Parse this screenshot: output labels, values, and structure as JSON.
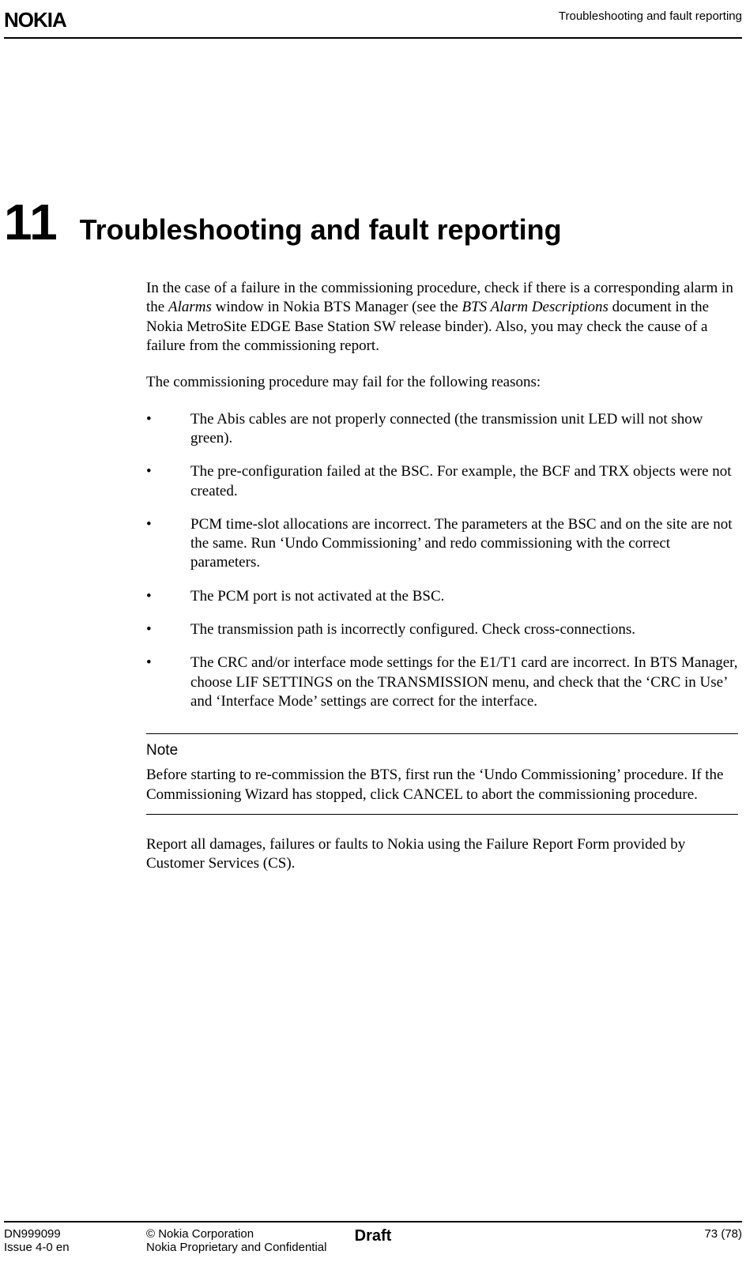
{
  "header": {
    "logo_text": "NOKIA",
    "section_title": "Troubleshooting and fault reporting"
  },
  "chapter": {
    "number": "11",
    "title": "Troubleshooting and fault reporting"
  },
  "intro_para_prefix": "In the case of a failure in the commissioning procedure, check if there is a corresponding alarm in the ",
  "intro_para_alarms": "Alarms",
  "intro_para_mid": " window in Nokia BTS Manager (see the ",
  "intro_para_bts": "BTS Alarm Descriptions",
  "intro_para_suffix": " document in the Nokia MetroSite EDGE Base Station SW release binder). Also, you may check the cause of a failure from the commissioning report.",
  "reasons_lead": "The commissioning procedure may fail for the following reasons:",
  "bullets": [
    "The Abis cables are not properly connected (the transmission unit LED will not show green).",
    "The pre-configuration failed at the BSC. For example, the BCF and TRX objects were not created.",
    "PCM time-slot allocations are incorrect. The parameters at the BSC and on the site are not the same. Run ‘Undo Commissioning’ and redo commissioning with the correct parameters.",
    "The PCM port is not activated at the BSC.",
    "The transmission path is incorrectly configured. Check cross-connections.",
    "The CRC and/or interface mode settings for the E1/T1 card are incorrect. In BTS Manager, choose LIF SETTINGS on the TRANSMISSION menu, and check that the ‘CRC in Use’ and ‘Interface Mode’ settings are correct for the interface."
  ],
  "note": {
    "label": "Note",
    "body": "Before starting to re-commission the BTS, first run the ‘Undo Commissioning’ procedure. If the Commissioning Wizard has stopped, click CANCEL to abort the commissioning procedure."
  },
  "closing": "Report all damages, failures or faults to Nokia using the Failure Report Form provided by Customer Services (CS).",
  "footer": {
    "doc_id": "DN999099",
    "issue": "Issue 4-0 en",
    "copyright": "© Nokia Corporation",
    "confidential": "Nokia Proprietary and Confidential",
    "status": "Draft",
    "page": "73 (78)"
  }
}
